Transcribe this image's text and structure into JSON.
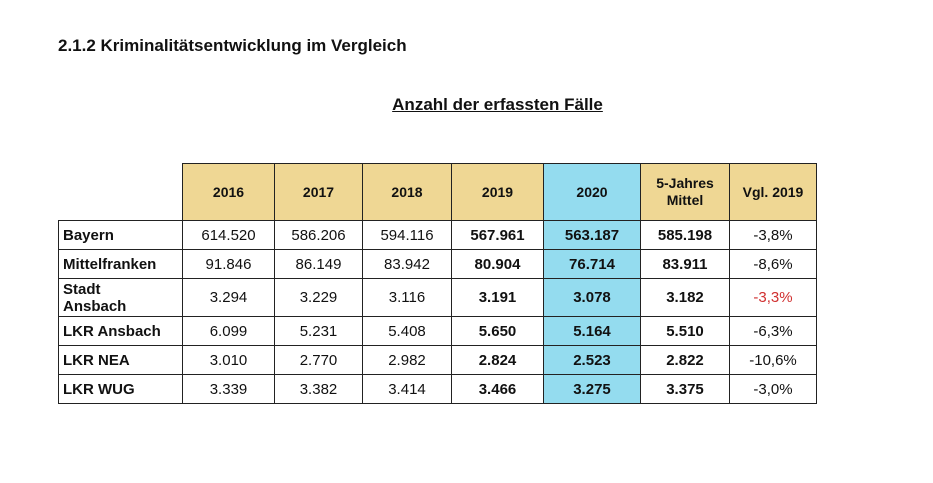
{
  "heading": "2.1.2 Kriminalitätsentwicklung im Vergleich",
  "subtitle": "Anzahl der erfassten Fälle",
  "table": {
    "headers": [
      "",
      "2016",
      "2017",
      "2018",
      "2019",
      "2020",
      "5-Jahres Mittel",
      "Vgl. 2019"
    ],
    "header_mittel_line1": "5-Jahres",
    "header_mittel_line2": "Mittel",
    "rows": [
      {
        "region": "Bayern",
        "values": [
          "614.520",
          "586.206",
          "594.116",
          "567.961",
          "563.187",
          "585.198",
          "-3,8%"
        ]
      },
      {
        "region": "Mittelfranken",
        "values": [
          "91.846",
          "86.149",
          "83.942",
          "80.904",
          "76.714",
          "83.911",
          "-8,6%"
        ]
      },
      {
        "region": "Stadt Ansbach",
        "region_line1": "Stadt",
        "region_line2": "Ansbach",
        "values": [
          "3.294",
          "3.229",
          "3.116",
          "3.191",
          "3.078",
          "3.182",
          "-3,3%"
        ]
      },
      {
        "region": "LKR Ansbach",
        "values": [
          "6.099",
          "5.231",
          "5.408",
          "5.650",
          "5.164",
          "5.510",
          "-6,3%"
        ]
      },
      {
        "region": "LKR NEA",
        "values": [
          "3.010",
          "2.770",
          "2.982",
          "2.824",
          "2.523",
          "2.822",
          "-10,6%"
        ]
      },
      {
        "region": "LKR WUG",
        "values": [
          "3.339",
          "3.382",
          "3.414",
          "3.466",
          "3.275",
          "3.375",
          "-3,0%"
        ]
      }
    ]
  },
  "colors": {
    "header_bg": "#efd794",
    "highlight_2020": "#94dcef",
    "negative_highlight": "#d03030"
  }
}
